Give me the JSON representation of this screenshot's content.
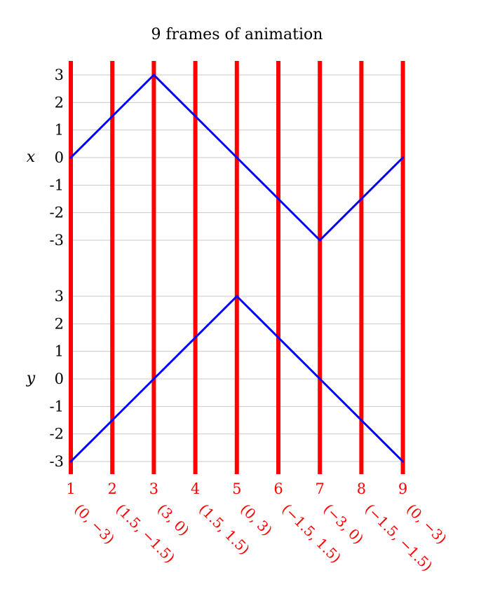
{
  "chart_data": {
    "type": "line",
    "title": "9 frames of animation",
    "frames": [
      "1",
      "2",
      "3",
      "4",
      "5",
      "6",
      "7",
      "8",
      "9"
    ],
    "frame_labels": [
      "(0, −3)",
      "(1.5, −1.5)",
      "(3, 0)",
      "(1.5, 1.5)",
      "(0, 3)",
      "(−1.5, 1.5)",
      "(−3, 0)",
      "(−1.5, −1.5)",
      "(0, −3)"
    ],
    "panels": [
      {
        "ylabel": "x",
        "ylim": [
          -3,
          3
        ],
        "ticks": [
          "3",
          "2",
          "1",
          "0",
          "-1",
          "-2",
          "-3"
        ],
        "tick_values": [
          3,
          2,
          1,
          0,
          -1,
          -2,
          -3
        ],
        "values": [
          0,
          1.5,
          3,
          1.5,
          0,
          -1.5,
          -3,
          -1.5,
          0
        ]
      },
      {
        "ylabel": "y",
        "ylim": [
          -3,
          3
        ],
        "ticks": [
          "3",
          "2",
          "1",
          "0",
          "-1",
          "-2",
          "-3"
        ],
        "tick_values": [
          3,
          2,
          1,
          0,
          -1,
          -2,
          -3
        ],
        "values": [
          -3,
          -1.5,
          0,
          1.5,
          3,
          1.5,
          0,
          -1.5,
          -3
        ]
      }
    ],
    "grid": true,
    "colors": {
      "frame_lines": "#ff0000",
      "series": "#0000ff",
      "grid": "#c8c8c8",
      "text": "#000000"
    }
  }
}
